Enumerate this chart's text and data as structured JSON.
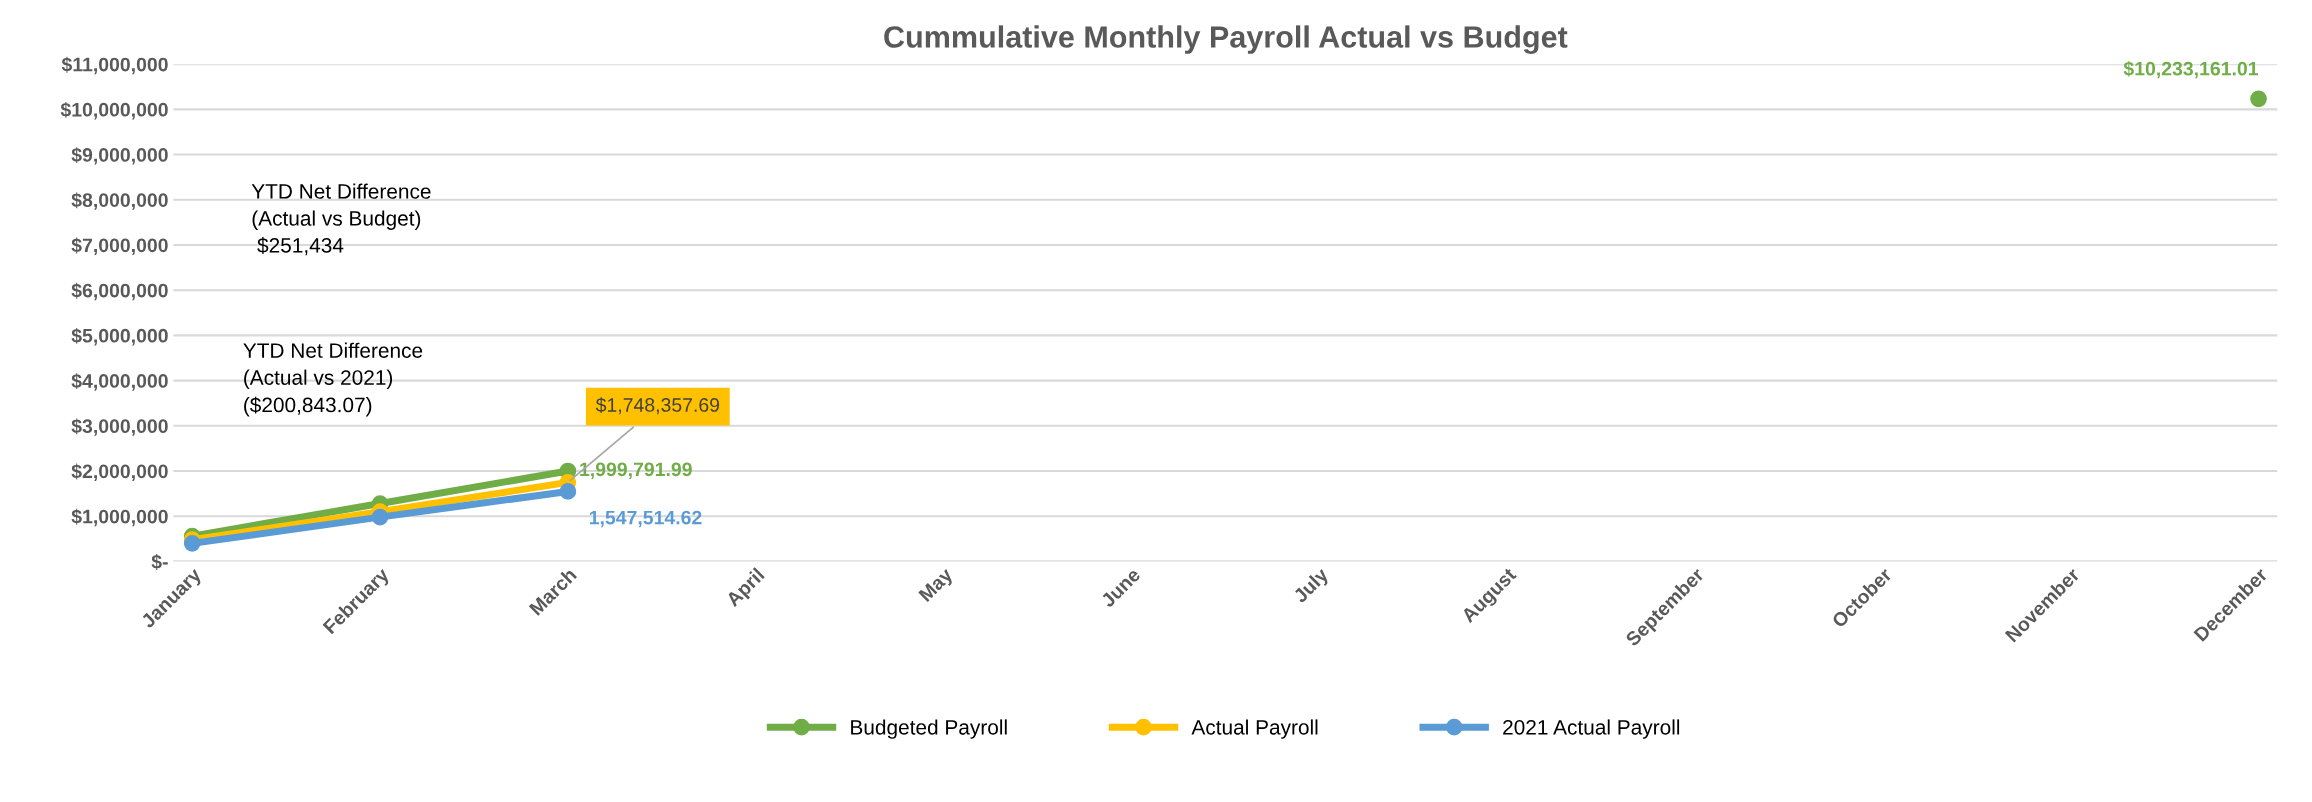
{
  "chart_data": {
    "type": "line",
    "title": "Cummulative Monthly Payroll Actual vs Budget",
    "categories": [
      "January",
      "February",
      "March",
      "April",
      "May",
      "June",
      "July",
      "August",
      "September",
      "October",
      "November",
      "December"
    ],
    "series": [
      {
        "name": "Budgeted Payroll",
        "color": "#70ad47",
        "values": [
          560000,
          1280000,
          1999791.99,
          null,
          null,
          null,
          null,
          null,
          null,
          null,
          null,
          10233161.01
        ],
        "value_labels": [
          null,
          null,
          "1,999,791.99",
          null,
          null,
          null,
          null,
          null,
          null,
          null,
          null,
          "$10,233,161.01"
        ]
      },
      {
        "name": "Actual Payroll",
        "color": "#ffc000",
        "values": [
          480000,
          1100000,
          1748357.69,
          null,
          null,
          null,
          null,
          null,
          null,
          null,
          null,
          null
        ],
        "value_labels": [
          null,
          null,
          "$1,748,357.69",
          null,
          null,
          null,
          null,
          null,
          null,
          null,
          null,
          null
        ]
      },
      {
        "name": "2021 Actual Payroll",
        "color": "#5b9bd5",
        "values": [
          400000,
          980000,
          1547514.62,
          null,
          null,
          null,
          null,
          null,
          null,
          null,
          null,
          null
        ],
        "value_labels": [
          null,
          null,
          "1,547,514.62",
          null,
          null,
          null,
          null,
          null,
          null,
          null,
          null,
          null
        ]
      }
    ],
    "ylim": [
      0,
      11000000
    ],
    "yticks": [
      {
        "value": 0,
        "label": "$-"
      },
      {
        "value": 1000000,
        "label": "$1,000,000"
      },
      {
        "value": 2000000,
        "label": "$2,000,000"
      },
      {
        "value": 3000000,
        "label": "$3,000,000"
      },
      {
        "value": 4000000,
        "label": "$4,000,000"
      },
      {
        "value": 5000000,
        "label": "$5,000,000"
      },
      {
        "value": 6000000,
        "label": "$6,000,000"
      },
      {
        "value": 7000000,
        "label": "$7,000,000"
      },
      {
        "value": 8000000,
        "label": "$8,000,000"
      },
      {
        "value": 9000000,
        "label": "$9,000,000"
      },
      {
        "value": 10000000,
        "label": "$10,000,000"
      },
      {
        "value": 11000000,
        "label": "$11,000,000"
      }
    ],
    "annotations": [
      "YTD Net Difference\n(Actual vs Budget)\n $251,434",
      "YTD Net Difference\n(Actual vs 2021)\n($200,843.07)"
    ],
    "grid": "y",
    "legend": "bottom",
    "marker": "circle",
    "line_style": "solid"
  }
}
